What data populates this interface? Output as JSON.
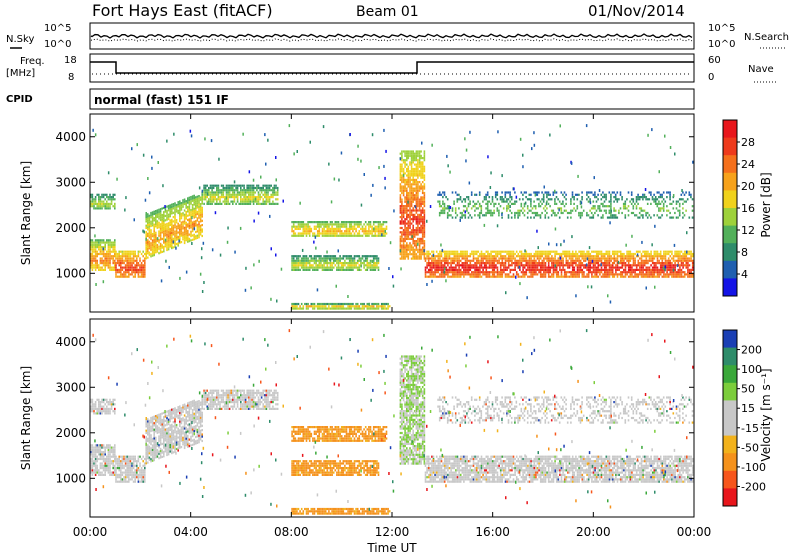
{
  "header": {
    "station": "Fort Hays East (fitACF)",
    "beam": "Beam 01",
    "date": "01/Nov/2014"
  },
  "top_panel": {
    "left_labels": [
      "N.Sky",
      "Freq.",
      "[MHz]",
      "CPID"
    ],
    "right_labels": [
      "N.Search",
      "Nave"
    ],
    "noise_ticks_left": [
      "10^5",
      "10^0"
    ],
    "noise_ticks_right": [
      "10^5",
      "10^0"
    ],
    "freq_ticks": [
      "18",
      "8"
    ],
    "nave_ticks": [
      "60",
      "0"
    ],
    "cpid_text": "normal (fast) 151 IF"
  },
  "chart_data": [
    {
      "type": "heatmap",
      "name": "power",
      "ylabel": "Slant Range [km]",
      "yticks": [
        "1000",
        "2000",
        "3000",
        "4000"
      ],
      "ylim": [
        150,
        4500
      ],
      "colorbar": {
        "title": "Power [dB]",
        "ticks": [
          "4",
          "8",
          "12",
          "16",
          "20",
          "24",
          "28"
        ],
        "range": [
          0,
          30
        ]
      }
    },
    {
      "type": "heatmap",
      "name": "velocity",
      "ylabel": "Slant Range [km]",
      "yticks": [
        "1000",
        "2000",
        "3000",
        "4000"
      ],
      "ylim": [
        150,
        4500
      ],
      "colorbar": {
        "title": "Velocity [m s⁻¹]",
        "ticks": [
          "200",
          "100",
          "50",
          "15",
          "-15",
          "-50",
          "-100",
          "-200"
        ]
      }
    }
  ],
  "x_axis": {
    "label": "Time UT",
    "ticks": [
      "00:00",
      "04:00",
      "08:00",
      "12:00",
      "16:00",
      "20:00",
      "00:00"
    ],
    "xlim_hours": [
      0,
      24
    ]
  },
  "colors": {
    "power": [
      "#1414e6",
      "#1f5fb0",
      "#2e8c6a",
      "#52b05a",
      "#9ed13b",
      "#f0d21c",
      "#f7a21b",
      "#f5701c",
      "#ee3a1c",
      "#e8161c"
    ],
    "velocity": [
      "#e8161c",
      "#f7561c",
      "#f5921c",
      "#f2b21c",
      "#c8c8c8",
      "#c8c8c8",
      "#7ccd3c",
      "#3aa83a",
      "#2e8c6a",
      "#1a3fb4"
    ]
  }
}
